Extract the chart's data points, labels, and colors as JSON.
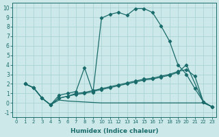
{
  "xlabel": "Humidex (Indice chaleur)",
  "xlim": [
    -0.5,
    23.5
  ],
  "ylim": [
    -1.5,
    10.5
  ],
  "bg_color": "#cce8e8",
  "grid_color": "#aad4d4",
  "line_color": "#1a6b6b",
  "line1_x": [
    1,
    2,
    3,
    4,
    5,
    6,
    7,
    8,
    9,
    10,
    11,
    12,
    13,
    14,
    15,
    16,
    17,
    18,
    19,
    20,
    21,
    22,
    23
  ],
  "line1_y": [
    2.0,
    1.6,
    0.5,
    -0.2,
    0.8,
    1.0,
    1.2,
    3.7,
    1.1,
    8.9,
    9.3,
    9.5,
    9.2,
    9.9,
    9.9,
    9.5,
    8.1,
    6.5,
    4.0,
    3.0,
    1.5,
    0.1,
    -0.4
  ],
  "line2_x": [
    1,
    2,
    3,
    4,
    5,
    6,
    7,
    8,
    9,
    10,
    11,
    12,
    13,
    14,
    15,
    16,
    17,
    18,
    19,
    20,
    21,
    22,
    23
  ],
  "line2_y": [
    2.0,
    1.6,
    0.5,
    -0.2,
    0.5,
    0.7,
    1.0,
    1.1,
    1.3,
    1.5,
    1.7,
    1.9,
    2.1,
    2.3,
    2.5,
    2.6,
    2.8,
    3.0,
    3.3,
    3.5,
    2.8,
    0.1,
    -0.4
  ],
  "line3_x": [
    1,
    2,
    3,
    4,
    5,
    6,
    7,
    8,
    9,
    10,
    11,
    12,
    13,
    14,
    15,
    16,
    17,
    18,
    19,
    20,
    22,
    23
  ],
  "line3_y": [
    2.0,
    1.6,
    0.5,
    -0.2,
    0.5,
    0.7,
    0.9,
    1.0,
    1.2,
    1.4,
    1.6,
    1.8,
    2.0,
    2.2,
    2.4,
    2.5,
    2.7,
    2.9,
    3.2,
    4.0,
    0.1,
    -0.4
  ],
  "line4_x": [
    1,
    2,
    3,
    4,
    5,
    6,
    7,
    8,
    9,
    10,
    11,
    12,
    13,
    14,
    15,
    16,
    17,
    18,
    19,
    20,
    21,
    22,
    23
  ],
  "line4_y": [
    2.0,
    1.6,
    0.5,
    -0.2,
    0.3,
    0.2,
    0.15,
    0.1,
    0.05,
    0.0,
    0.0,
    0.0,
    0.0,
    0.0,
    0.0,
    0.0,
    0.0,
    0.0,
    0.0,
    0.0,
    0.0,
    0.0,
    -0.4
  ],
  "xticks": [
    0,
    1,
    2,
    3,
    4,
    5,
    6,
    7,
    8,
    9,
    10,
    11,
    12,
    13,
    14,
    15,
    16,
    17,
    18,
    19,
    20,
    21,
    22,
    23
  ],
  "yticks": [
    -1,
    0,
    1,
    2,
    3,
    4,
    5,
    6,
    7,
    8,
    9,
    10
  ]
}
